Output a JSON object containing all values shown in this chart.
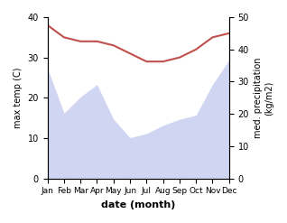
{
  "months": [
    "Jan",
    "Feb",
    "Mar",
    "Apr",
    "May",
    "Jun",
    "Jul",
    "Aug",
    "Sep",
    "Oct",
    "Nov",
    "Dec"
  ],
  "max_temp": [
    38,
    35,
    34,
    34,
    33,
    31,
    29,
    29,
    30,
    32,
    35,
    36
  ],
  "precipitation": [
    270,
    160,
    200,
    230,
    145,
    100,
    110,
    130,
    145,
    155,
    230,
    290
  ],
  "temp_color": "#c0504d",
  "precip_color": "#aab4e8",
  "precip_fill_alpha": 0.55,
  "temp_ylim": [
    0,
    40
  ],
  "precip_ylim": [
    0,
    395
  ],
  "temp_yticks": [
    0,
    10,
    20,
    30,
    40
  ],
  "precip_yticks": [
    0,
    10,
    20,
    30,
    40,
    50
  ],
  "precip_yticklabels": [
    "0",
    "10",
    "20",
    "30",
    "40",
    "50"
  ],
  "ylabel_left": "max temp (C)",
  "ylabel_right": "med. precipitation\n(kg/m2)",
  "xlabel": "date (month)",
  "figsize": [
    3.18,
    2.47
  ],
  "dpi": 100
}
